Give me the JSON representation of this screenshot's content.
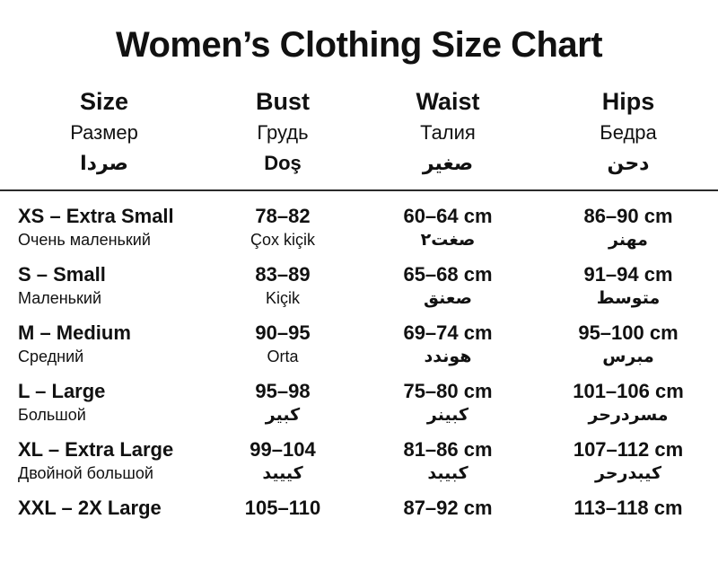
{
  "chart_data": {
    "type": "table",
    "title": "Women’s Clothing Size Chart",
    "columns": [
      {
        "en": "Size",
        "ru": "Размер",
        "ar": "صردا"
      },
      {
        "en": "Bust",
        "ru": "Грудь",
        "ar": "Doş"
      },
      {
        "en": "Waist",
        "ru": "Талия",
        "ar": "صغير"
      },
      {
        "en": "Hips",
        "ru": "Бедра",
        "ar": "دحن"
      }
    ],
    "rows": [
      {
        "size": "XS – Extra Small",
        "size_sub": "Очень маленький",
        "bust": "78–82",
        "bust_sub": "Çox kiçik",
        "waist": "60–64 cm",
        "waist_sub": "صغت٢",
        "hips": "86–90 cm",
        "hips_sub": "مهنر"
      },
      {
        "size": "S – Small",
        "size_sub": "Маленький",
        "bust": "83–89",
        "bust_sub": "Kiçik",
        "waist": "65–68 cm",
        "waist_sub": "صعنق",
        "hips": "91–94 cm",
        "hips_sub": "متوسط"
      },
      {
        "size": "M – Medium",
        "size_sub": "Средний",
        "bust": "90–95",
        "bust_sub": "Orta",
        "waist": "69–74 cm",
        "waist_sub": "هوندد",
        "hips": "95–100 cm",
        "hips_sub": "مبرس"
      },
      {
        "size": "L – Large",
        "size_sub": "Большой",
        "bust": "95–98",
        "bust_sub": "كبير",
        "waist": "75–80 cm",
        "waist_sub": "كبينر",
        "hips": "101–106 cm",
        "hips_sub": "مسردرحر"
      },
      {
        "size": "XL – Extra Large",
        "size_sub": "Двойной большой",
        "bust": "99–104",
        "bust_sub": "كيييد",
        "waist": "81–86 cm",
        "waist_sub": "كبيبد",
        "hips": "107–112 cm",
        "hips_sub": "كيبدرحر"
      },
      {
        "size": "XXL – 2X Large",
        "size_sub": "",
        "bust": "105–110",
        "bust_sub": "",
        "waist": "87–92 cm",
        "waist_sub": "",
        "hips": "113–118 cm",
        "hips_sub": ""
      }
    ]
  },
  "colors": {
    "background": "#ffffff",
    "text": "#111111",
    "divider": "#2b2b2b"
  }
}
